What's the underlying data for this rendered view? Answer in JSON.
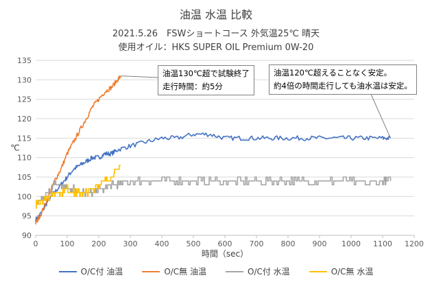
{
  "chart_data": {
    "type": "line",
    "title": "油温 水温 比較",
    "subtitle_line1": "2021.5.26　FSWショートコース 外気温25℃ 晴天",
    "subtitle_line2": "使用オイル：HKS SUPER OIL Premium 0W-20",
    "xlabel": "時間（sec）",
    "ylabel": "℃",
    "xlim": [
      0,
      1200
    ],
    "ylim": [
      90,
      135
    ],
    "xticks": [
      0,
      100,
      200,
      300,
      400,
      500,
      600,
      700,
      800,
      900,
      1000,
      1100,
      1200
    ],
    "yticks": [
      90,
      95,
      100,
      105,
      110,
      115,
      120,
      125,
      130,
      135
    ],
    "grid": "horizontal",
    "legend_position": "bottom",
    "series": [
      {
        "name": "O/C付 油温",
        "color": "#4472c4",
        "x": [
          0,
          20,
          40,
          60,
          80,
          100,
          120,
          140,
          160,
          180,
          200,
          220,
          240,
          260,
          300,
          350,
          400,
          450,
          500,
          550,
          600,
          650,
          700,
          750,
          800,
          850,
          900,
          950,
          1000,
          1050,
          1100,
          1125
        ],
        "y": [
          94,
          96,
          99,
          101,
          103,
          105,
          107,
          108,
          109,
          110,
          110,
          111,
          111,
          112,
          113,
          114,
          115,
          115,
          116,
          116,
          115,
          115,
          115,
          115,
          115,
          115,
          115,
          115,
          115,
          115,
          115,
          115
        ]
      },
      {
        "name": "O/C無 油温",
        "color": "#ed7d31",
        "x": [
          0,
          20,
          40,
          60,
          80,
          100,
          120,
          140,
          160,
          180,
          200,
          220,
          240,
          260,
          270
        ],
        "y": [
          93,
          96,
          100,
          104,
          107,
          111,
          114,
          117,
          120,
          123,
          125,
          127,
          128,
          130,
          131
        ]
      },
      {
        "name": "O/C付 水温",
        "color": "#a5a5a5",
        "x": [
          0,
          20,
          40,
          60,
          80,
          100,
          120,
          140,
          160,
          180,
          200,
          220,
          240,
          260,
          300,
          350,
          400,
          450,
          500,
          550,
          600,
          650,
          700,
          750,
          800,
          850,
          900,
          950,
          1000,
          1050,
          1100,
          1125
        ],
        "y": [
          97,
          99,
          101,
          103,
          103,
          102,
          102,
          101,
          101,
          101,
          102,
          102,
          103,
          103,
          104,
          104,
          104,
          104,
          104,
          104,
          104,
          104,
          104,
          104,
          104,
          104,
          104,
          104,
          104,
          103,
          104,
          104
        ]
      },
      {
        "name": "O/C無 水温",
        "color": "#ffc000",
        "x": [
          0,
          20,
          40,
          60,
          80,
          100,
          120,
          140,
          160,
          180,
          200,
          220,
          240,
          260,
          270
        ],
        "y": [
          98,
          99,
          100,
          101,
          101,
          102,
          101,
          101,
          101,
          102,
          103,
          104,
          105,
          107,
          108
        ]
      }
    ],
    "annotations": [
      {
        "line1": "油温130℃超で試験終了",
        "line2": "走行時間：約5分",
        "x": 270,
        "y": 131
      },
      {
        "line1": "油温120℃超えることなく安定。",
        "line2": "約4倍の時間走行しても油水温は安定。",
        "x": 1125,
        "y": 115
      }
    ]
  }
}
